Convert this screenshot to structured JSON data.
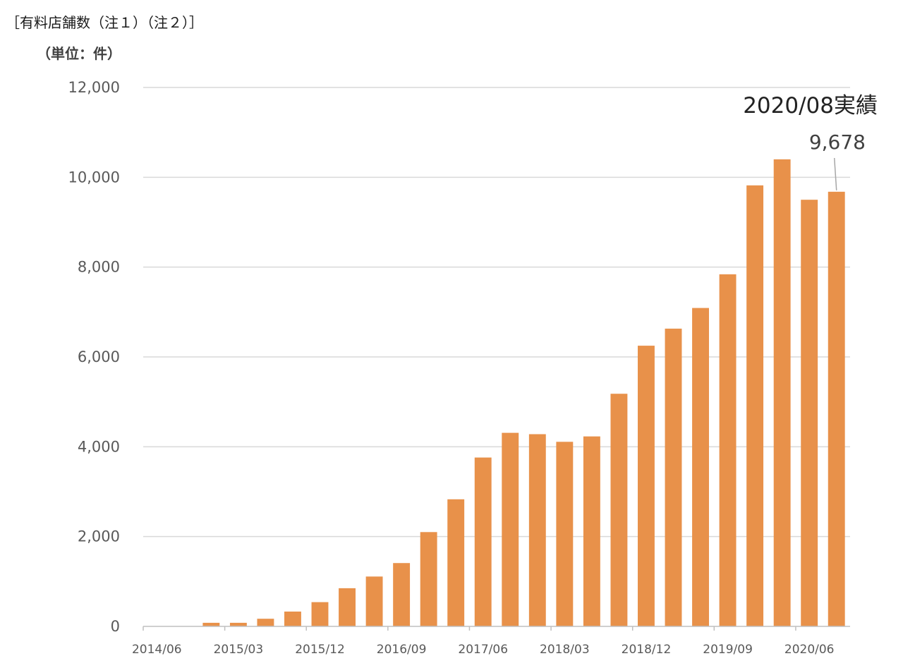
{
  "page_title": "［有料店舗数（注１）（注２）］",
  "chart_data": {
    "type": "bar",
    "unit_label": "（単位：件）",
    "ylim": [
      0,
      12000
    ],
    "yticks": [
      0,
      2000,
      4000,
      6000,
      8000,
      10000,
      12000
    ],
    "ytick_labels": [
      "0",
      "2,000",
      "4,000",
      "6,000",
      "8,000",
      "10,000",
      "12,000"
    ],
    "xtick_labels": [
      "2014/06",
      "2015/03",
      "2015/12",
      "2016/09",
      "2017/06",
      "2018/03",
      "2018/12",
      "2019/09",
      "2020/06"
    ],
    "xtick_every": 3,
    "categories": [
      "2014/06",
      "2014/09",
      "2014/12",
      "2015/03",
      "2015/06",
      "2015/09",
      "2015/12",
      "2016/03",
      "2016/06",
      "2016/09",
      "2016/12",
      "2017/03",
      "2017/06",
      "2017/09",
      "2017/12",
      "2018/03",
      "2018/06",
      "2018/09",
      "2018/12",
      "2019/03",
      "2019/06",
      "2019/09",
      "2019/12",
      "2020/03",
      "2020/06",
      "2020/08"
    ],
    "values": [
      0,
      0,
      80,
      80,
      170,
      330,
      540,
      850,
      1110,
      1410,
      2100,
      2830,
      3760,
      4310,
      4280,
      4110,
      4230,
      5180,
      6250,
      6630,
      7090,
      7840,
      9820,
      10400,
      9500,
      9678
    ],
    "bar_color": "#E8914A",
    "grid": true,
    "grid_color": "#D9D9D9",
    "annotation": {
      "title": "2020/08実績",
      "value": "9,678",
      "target_index": 25
    }
  }
}
